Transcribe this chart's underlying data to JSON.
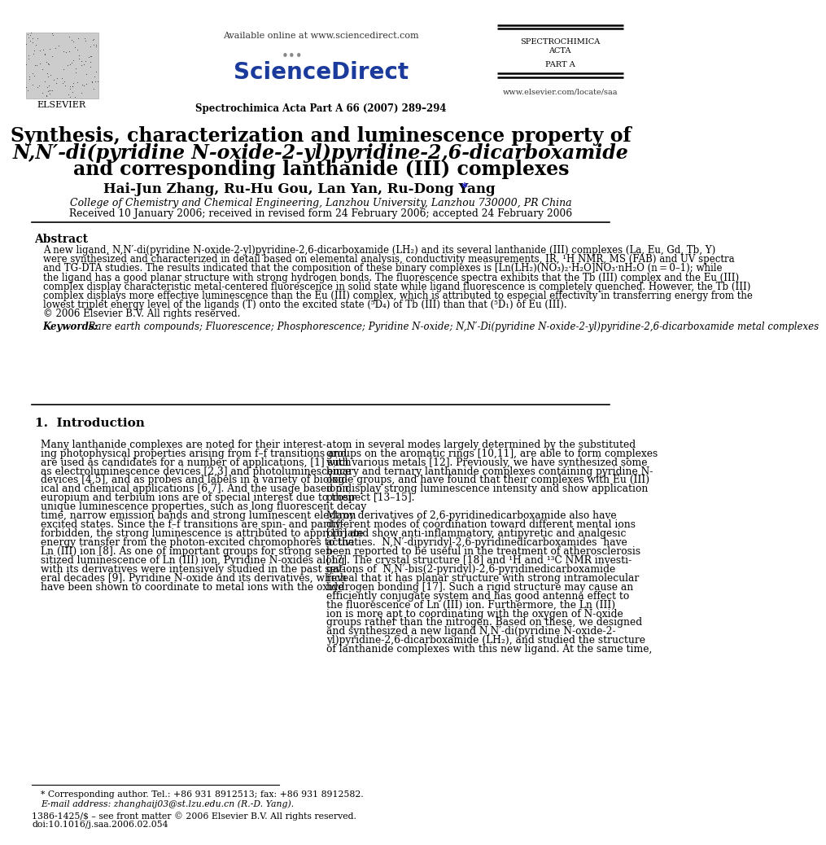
{
  "bg_color": "#ffffff",
  "available_online": "Available online at www.sciencedirect.com",
  "sciencedirect": "ScienceDirect",
  "journal_info": "Spectrochimica Acta Part A 66 (2007) 289–294",
  "journal_name_line1": "SPECTROCHIMICA",
  "journal_name_line2": "ACTA",
  "journal_name_line3": "PART A",
  "url_right": "www.elsevier.com/locate/saa",
  "title_line1": "Synthesis, characterization and luminescence property of",
  "title_line2": "N,N′-di(pyridine N-oxide-2-yl)pyridine-2,6-dicarboxamide",
  "title_line3": "and corresponding lanthanide (III) complexes",
  "authors": "Hai-Jun Zhang, Ru-Hu Gou, Lan Yan, Ru-Dong Yang",
  "author_star": "*",
  "affiliation": "College of Chemistry and Chemical Engineering, Lanzhou University, Lanzhou 730000, PR China",
  "received": "Received 10 January 2006; received in revised form 24 February 2006; accepted 24 February 2006",
  "abstract_heading": "Abstract",
  "abstract_lines": [
    "A new ligand, N,N′-di(pyridine N-oxide-2-yl)pyridine-2,6-dicarboxamide (LH₂) and its several lanthanide (III) complexes (La, Eu, Gd, Tb, Y)",
    "were synthesized and characterized in detail based on elemental analysis, conductivity measurements, IR, ¹H NMR, MS (FAB) and UV spectra",
    "and TG-DTA studies. The results indicated that the composition of these binary complexes is [Ln(LH₂)(NO₃)₂·H₂O]NO₃·nH₂O (n = 0–1); while",
    "the ligand has a good planar structure with strong hydrogen bonds. The fluorescence spectra exhibits that the Tb (III) complex and the Eu (III)",
    "complex display characteristic metal-centered fluorescence in solid state while ligand fluorescence is completely quenched. However, the Tb (III)",
    "complex displays more effective luminescence than the Eu (III) complex, which is attributed to especial effectivity in transferring energy from the",
    "lowest triplet energy level of the ligands (T) onto the excited state (⁵D₄) of Tb (III) than that (⁵D₁) of Eu (III).",
    "© 2006 Elsevier B.V. All rights reserved."
  ],
  "keywords_label": "Keywords:",
  "keywords_text": "  Rare earth compounds; Fluorescence; Phosphorescence; Pyridine N-oxide; N,N′-Di(pyridine N-oxide-2-yl)pyridine-2,6-dicarboxamide metal complexes",
  "section1_heading": "1.  Introduction",
  "col1_lines": [
    "Many lanthanide complexes are noted for their interest-",
    "ing photophysical properties arising from f–f transitions and",
    "are used as candidates for a number of applications, [1] such",
    "as electroluminescence devices [2,3] and photoluminescence",
    "devices [4,5], and as probes and labels in a variety of biolog-",
    "ical and chemical applications [6,7]. And the usage based on",
    "europium and terbium ions are of special interest due to their",
    "unique luminescence properties, such as long fluorescent decay",
    "time, narrow emission bands and strong luminescent electron",
    "excited states. Since the f–f transitions are spin- and parity-",
    "forbidden, the strong luminescence is attributed to appropriate",
    "energy transfer from the photon-excited chromophores to the",
    "Ln (III) ion [8]. As one of important groups for strong sen-",
    "sitized luminescence of Ln (III) ion, Pyridine N-oxides along",
    "with its derivatives were intensively studied in the past sev-",
    "eral decades [9]. Pyridine N-oxide and its derivatives, which",
    "have been shown to coordinate to metal ions with the oxide"
  ],
  "col2_lines": [
    "atom in several modes largely determined by the substituted",
    "groups on the aromatic rings [10,11], are able to form complexes",
    "with various metals [12]. Previously, we have synthesized some",
    "binary and ternary lanthanide complexes containing pyridine N-",
    "oxide groups, and have found that their complexes with Eu (III)",
    "ion display strong luminescence intensity and show application",
    "prospect [13–15].",
    "",
    "Many derivatives of 2,6-pyridinedicarboxamide also have",
    "different modes of coordination toward different mental ions",
    "[16] and show anti-inflammatory, antipyretic and analgesic",
    "activities.  N,N′-dipyridyl-2,6-pyridinedicarboxamides  have",
    "been reported to be useful in the treatment of atherosclerosis",
    "[17]. The crystal structure [18] and ¹H and ¹³C NMR investi-",
    "gations of  N,N′-bis(2-pyridyl)-2,6-pyridinedicarboxamide",
    "reveal that it has planar structure with strong intramolecular",
    "hydrogen bonding [17]. Such a rigid structure may cause an",
    "efficiently conjugate system and has good antenna effect to",
    "the fluorescence of Ln (III) ion. Furthermore, the Ln (III)",
    "ion is more apt to coordinating with the oxygen of N-oxide",
    "groups rather than the nitrogen. Based on these, we designed",
    "and synthesized a new ligand N,N′-di(pyridine N-oxide-2-",
    "yl)pyridine-2,6-dicarboxamide (LH₂), and studied the structure",
    "of lanthanide complexes with this new ligand. At the same time,"
  ],
  "footnote_line1": "* Corresponding author. Tel.: +86 931 8912513; fax: +86 931 8912582.",
  "footnote_line2": "E-mail address: zhanghaij03@st.lzu.edu.cn (R.-D. Yang).",
  "footnote_line3": "1386-1425/$ – see front matter © 2006 Elsevier B.V. All rights reserved.",
  "footnote_line4": "doi:10.1016/j.saa.2006.02.054"
}
